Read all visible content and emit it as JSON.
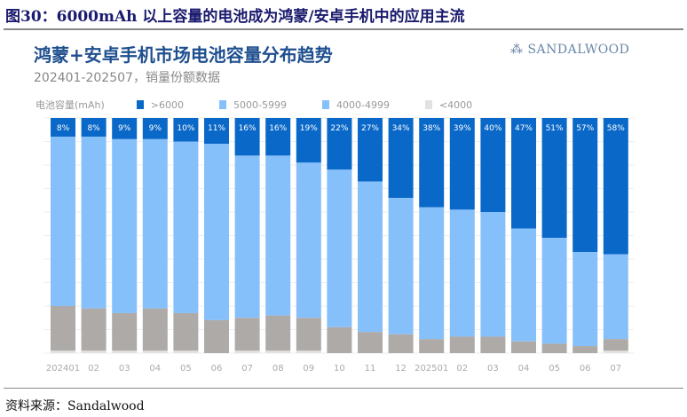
{
  "figure_title": "图30：6000mAh 以上容量的电池成为鸿蒙/安卓手机中的应用主流",
  "source": "资料来源：Sandalwood",
  "brand": "SANDALWOOD",
  "chart_data": {
    "type": "bar",
    "stacked": true,
    "title": "鸿蒙+安卓手机市场电池容量分布趋势",
    "subtitle": "202401-202507，销量份额数据",
    "legend_title": "电池容量(mAh)",
    "legend_position": "top",
    "ylim": [
      0,
      100
    ],
    "grid": true,
    "categories": [
      "202401",
      "02",
      "03",
      "04",
      "05",
      "06",
      "07",
      "08",
      "09",
      "10",
      "11",
      "12",
      "202501",
      "02",
      "03",
      "04",
      "05",
      "06",
      "07"
    ],
    "series": [
      {
        "name": ">6000",
        "color": "#0a68c8",
        "labeled": true,
        "values": [
          8,
          8,
          9,
          9,
          10,
          11,
          16,
          16,
          19,
          22,
          27,
          34,
          38,
          39,
          40,
          47,
          51,
          57,
          58
        ]
      },
      {
        "name": "5000-5999",
        "color": "#86c0fb",
        "values": [
          72,
          73,
          74,
          72,
          73,
          75,
          69,
          68,
          66,
          67,
          64,
          58,
          56,
          54,
          53,
          48,
          45,
          40,
          36
        ]
      },
      {
        "name": "4000-4999",
        "color": "#aeaaa7",
        "legend_color": "#86c0fb",
        "values": [
          19,
          18,
          16,
          18,
          16,
          14,
          14,
          15,
          14,
          11,
          9,
          8,
          6,
          7,
          7,
          5,
          4,
          3,
          5
        ]
      },
      {
        "name": "<4000",
        "color": "#e2e2e2",
        "values": [
          1,
          1,
          1,
          1,
          1,
          0,
          1,
          1,
          1,
          0,
          0,
          0,
          0,
          0,
          0,
          0,
          0,
          0,
          1
        ]
      }
    ]
  }
}
